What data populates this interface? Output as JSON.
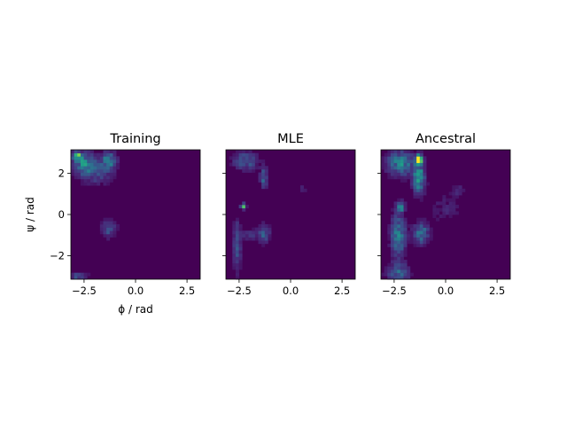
{
  "chart_data": [
    {
      "type": "heatmap",
      "title": "Training",
      "xlabel": "ϕ / rad",
      "ylabel": "ψ / rad",
      "xlim": [
        -3.14159,
        3.14159
      ],
      "ylim": [
        -3.14159,
        3.14159
      ],
      "xticks": [
        -2.5,
        0.0,
        2.5
      ],
      "xtick_labels": [
        "−2.5",
        "0.0",
        "2.5"
      ],
      "yticks": [
        -2,
        0,
        2
      ],
      "ytick_labels": [
        "−2",
        "0",
        "2"
      ],
      "bins": 40,
      "colormap": "viridis",
      "blobs": [
        {
          "phi": -2.85,
          "psi": 2.85,
          "amp": 1.0,
          "sphi": 0.12,
          "spsi": 0.12
        },
        {
          "phi": -2.5,
          "psi": 2.5,
          "amp": 0.45,
          "sphi": 0.35,
          "spsi": 0.35
        },
        {
          "phi": -1.3,
          "psi": 2.6,
          "amp": 0.45,
          "sphi": 0.25,
          "spsi": 0.3
        },
        {
          "phi": -1.9,
          "psi": 2.0,
          "amp": 0.2,
          "sphi": 0.5,
          "spsi": 0.4
        },
        {
          "phi": -1.3,
          "psi": -0.7,
          "amp": 0.25,
          "sphi": 0.25,
          "spsi": 0.3
        },
        {
          "phi": -2.8,
          "psi": -3.0,
          "amp": 0.25,
          "sphi": 0.3,
          "spsi": 0.15
        }
      ]
    },
    {
      "type": "heatmap",
      "title": "MLE",
      "xlim": [
        -3.14159,
        3.14159
      ],
      "ylim": [
        -3.14159,
        3.14159
      ],
      "xticks": [
        -2.5,
        0.0,
        2.5
      ],
      "xtick_labels": [
        "−2.5",
        "0.0",
        "2.5"
      ],
      "yticks": [
        -2,
        0,
        2
      ],
      "bins": 40,
      "colormap": "viridis",
      "blobs": [
        {
          "phi": -2.3,
          "psi": 0.4,
          "amp": 1.0,
          "sphi": 0.08,
          "spsi": 0.08
        },
        {
          "phi": -2.2,
          "psi": 2.6,
          "amp": 0.3,
          "sphi": 0.4,
          "spsi": 0.3
        },
        {
          "phi": -1.3,
          "psi": 1.8,
          "amp": 0.35,
          "sphi": 0.12,
          "spsi": 0.35
        },
        {
          "phi": -1.3,
          "psi": -0.9,
          "amp": 0.3,
          "sphi": 0.2,
          "spsi": 0.3
        },
        {
          "phi": -2.6,
          "psi": -1.5,
          "amp": 0.3,
          "sphi": 0.12,
          "spsi": 0.8
        },
        {
          "phi": -2.0,
          "psi": -1.0,
          "amp": 0.15,
          "sphi": 0.3,
          "spsi": 0.2
        },
        {
          "phi": 0.6,
          "psi": 1.2,
          "amp": 0.12,
          "sphi": 0.15,
          "spsi": 0.15
        }
      ]
    },
    {
      "type": "heatmap",
      "title": "Ancestral",
      "xlim": [
        -3.14159,
        3.14159
      ],
      "ylim": [
        -3.14159,
        3.14159
      ],
      "xticks": [
        -2.5,
        0.0,
        2.5
      ],
      "xtick_labels": [
        "−2.5",
        "0.0",
        "2.5"
      ],
      "yticks": [
        -2,
        0,
        2
      ],
      "bins": 40,
      "colormap": "viridis",
      "blobs": [
        {
          "phi": -1.3,
          "psi": 2.7,
          "amp": 1.0,
          "sphi": 0.12,
          "spsi": 0.15
        },
        {
          "phi": -2.2,
          "psi": 2.5,
          "amp": 0.45,
          "sphi": 0.45,
          "spsi": 0.4
        },
        {
          "phi": -1.3,
          "psi": 1.8,
          "amp": 0.55,
          "sphi": 0.2,
          "spsi": 0.5
        },
        {
          "phi": -2.2,
          "psi": 0.4,
          "amp": 0.65,
          "sphi": 0.12,
          "spsi": 0.15
        },
        {
          "phi": -2.3,
          "psi": -1.0,
          "amp": 0.45,
          "sphi": 0.25,
          "spsi": 0.7
        },
        {
          "phi": -1.2,
          "psi": -0.9,
          "amp": 0.4,
          "sphi": 0.25,
          "spsi": 0.35
        },
        {
          "phi": -2.3,
          "psi": -2.8,
          "amp": 0.3,
          "sphi": 0.4,
          "spsi": 0.3
        },
        {
          "phi": 0.6,
          "psi": 1.2,
          "amp": 0.12,
          "sphi": 0.2,
          "spsi": 0.2
        },
        {
          "phi": 0.0,
          "psi": 0.3,
          "amp": 0.1,
          "sphi": 0.5,
          "spsi": 0.5
        }
      ]
    }
  ]
}
